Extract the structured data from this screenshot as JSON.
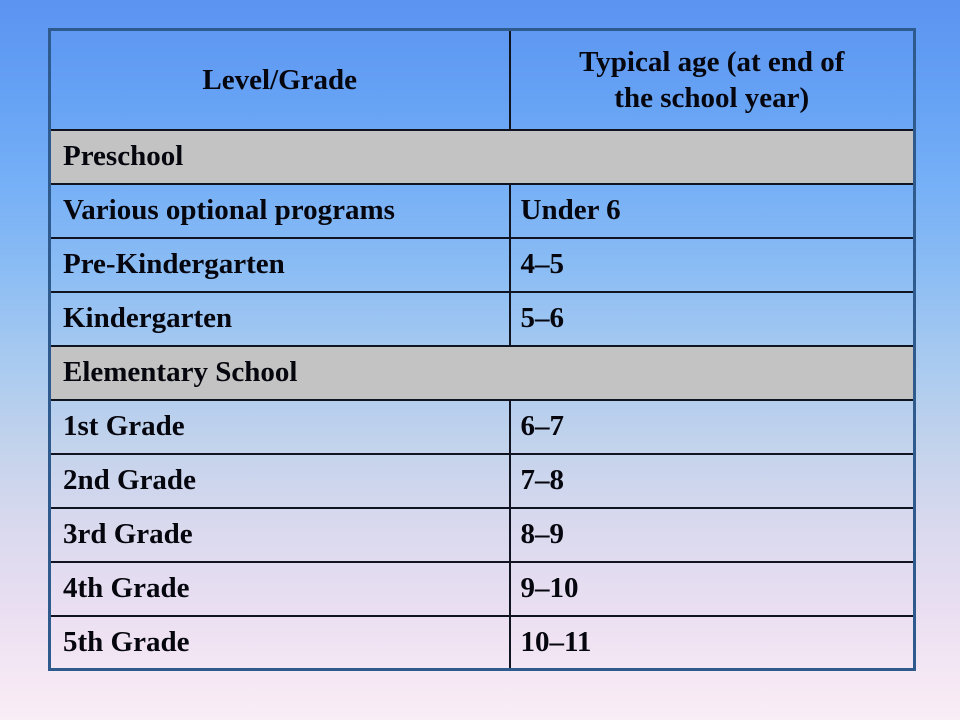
{
  "page": {
    "background_top_color": "#5b94f1",
    "background_bottom_color": "#f9edf6"
  },
  "table": {
    "header": {
      "level": "Level/Grade",
      "age_line1": "Typical age (at end of",
      "age_line2": "the school year)"
    },
    "sections": [
      {
        "title": "Preschool",
        "rows": [
          {
            "level": "Various optional programs",
            "age": "Under 6"
          },
          {
            "level": "Pre-Kindergarten",
            "age": "4–5"
          },
          {
            "level": "Kindergarten",
            "age": "5–6"
          }
        ]
      },
      {
        "title": "Elementary School",
        "rows": [
          {
            "level": "1st Grade",
            "age": "6–7"
          },
          {
            "level": "2nd Grade",
            "age": "7–8"
          },
          {
            "level": "3rd Grade",
            "age": "8–9"
          },
          {
            "level": "4th Grade",
            "age": "9–10"
          },
          {
            "level": "5th Grade",
            "age": "10–11"
          }
        ]
      }
    ],
    "colors": {
      "section_row_background": "#c3c3c3",
      "outer_border": "#2f5a8d",
      "grid_line": "#101420",
      "text": "#06060e"
    }
  }
}
